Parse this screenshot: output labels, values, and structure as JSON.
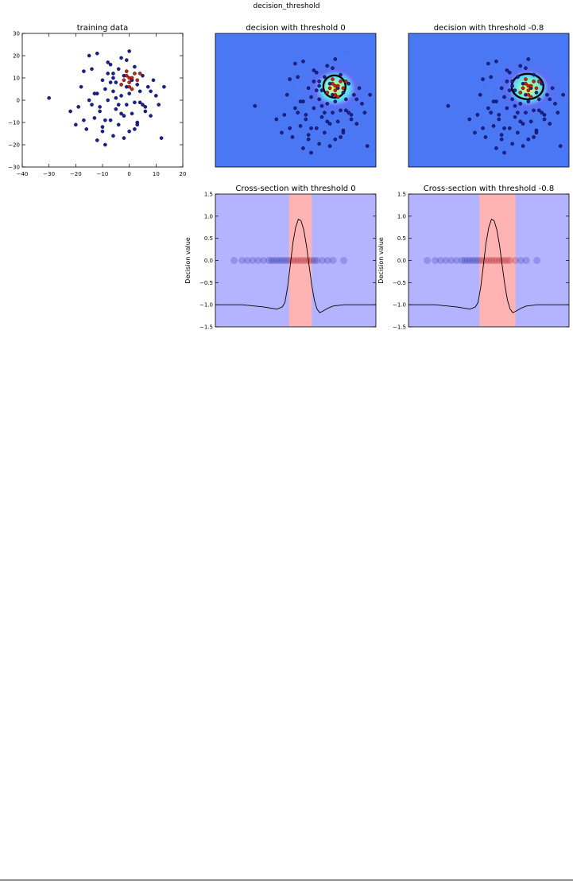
{
  "figure": {
    "suptitle": "decision_threshold"
  },
  "colors": {
    "point_blue": "#1a1f9a",
    "point_red": "#c8230c",
    "bg_blue": "#4a78f4",
    "band_red": "#ffb3b3",
    "region_blue": "#b3b3ff"
  },
  "chart_data": [
    {
      "type": "scatter",
      "title": "training data",
      "xlim": [
        -40,
        20
      ],
      "ylim": [
        -30,
        30
      ],
      "xticks": [
        "−40",
        "−30",
        "−20",
        "−10",
        "0",
        "10",
        "20"
      ],
      "yticks": [
        "30",
        "20",
        "10",
        "0",
        "−10",
        "−20",
        "−30"
      ],
      "series": [
        {
          "color": "#1a1f9a",
          "x": [
            -30,
            -22,
            -20,
            -18,
            -17,
            -15,
            -14,
            -13,
            -12,
            -12,
            -11,
            -10,
            -10,
            -9,
            -9,
            -8,
            -8,
            -7,
            -7,
            -6,
            -6,
            -5,
            -5,
            -4,
            -4,
            -3,
            -3,
            -2,
            -2,
            -1,
            -1,
            0,
            0,
            1,
            1,
            2,
            2,
            3,
            3,
            4,
            5,
            6,
            7,
            8,
            10,
            12,
            13,
            -16,
            -14,
            -11,
            -8,
            -6,
            -3,
            -1,
            2,
            4,
            6,
            -19,
            -13,
            -9,
            -4,
            0,
            3,
            8,
            -2,
            -6,
            -10,
            11,
            -17,
            -15,
            -12,
            -7,
            -5,
            5,
            9
          ],
          "y": [
            1,
            -5,
            -11,
            6,
            13,
            20,
            14,
            -8,
            3,
            21,
            -3,
            9,
            -14,
            5,
            -20,
            12,
            0,
            -9,
            16,
            4,
            -16,
            8,
            -4,
            14,
            -11,
            2,
            19,
            -7,
            11,
            -2,
            6,
            -14,
            3,
            9,
            -6,
            15,
            -1,
            7,
            -10,
            4,
            11,
            -3,
            6,
            -7,
            2,
            -17,
            6,
            -13,
            -2,
            -5,
            17,
            10,
            -6,
            18,
            -13,
            -1,
            -5,
            -3,
            3,
            -9,
            -2,
            22,
            -11,
            4,
            -17,
            12,
            -12,
            -2,
            -9,
            0,
            -18,
            8,
            1,
            -2,
            9
          ]
        },
        {
          "color": "#c8230c",
          "x": [
            -2,
            -1,
            0,
            1,
            2,
            -3,
            0,
            3,
            -1,
            1,
            4,
            0
          ],
          "y": [
            9,
            11,
            8,
            10,
            12,
            7,
            6,
            9,
            13,
            5,
            12,
            10
          ]
        }
      ]
    },
    {
      "type": "heatmap",
      "title": "decision with threshold 0",
      "threshold": 0
    },
    {
      "type": "heatmap",
      "title": "decision with threshold -0.8",
      "threshold": -0.8
    },
    {
      "type": "line",
      "title": "Cross-section with threshold 0",
      "ylabel": "Decision value",
      "ylim": [
        -1.5,
        1.5
      ],
      "yticks": [
        "1.5",
        "1.0",
        "0.5",
        "0.0",
        "−0.5",
        "−1.0",
        "−1.5"
      ],
      "xlim": [
        -30,
        30
      ],
      "positive_band": [
        -2.5,
        6
      ],
      "curve_x": [
        -30,
        -20,
        -12,
        -9,
        -7,
        -5,
        -4,
        -3,
        -2,
        -1,
        0,
        1,
        2,
        3,
        4,
        5,
        6,
        7,
        8,
        9,
        10,
        12,
        14,
        18,
        22,
        26,
        30
      ],
      "curve_y": [
        -1.0,
        -1.0,
        -1.05,
        -1.08,
        -1.1,
        -1.05,
        -0.95,
        -0.6,
        -0.1,
        0.4,
        0.75,
        0.93,
        0.9,
        0.7,
        0.35,
        -0.1,
        -0.55,
        -0.9,
        -1.1,
        -1.18,
        -1.15,
        -1.08,
        -1.03,
        -1.0,
        -1.0,
        -1.0,
        -1.0
      ],
      "points_x": [
        -23,
        -20,
        -18,
        -16,
        -14,
        -12,
        -10,
        -9,
        -8,
        -7,
        -6,
        -5,
        -4,
        -3,
        -2,
        -1,
        0,
        1,
        2,
        3,
        4,
        5,
        6,
        7,
        8,
        10,
        12,
        14,
        18
      ]
    },
    {
      "type": "line",
      "title": "Cross-section with threshold -0.8",
      "ylabel": "Decision value",
      "ylim": [
        -1.5,
        1.5
      ],
      "yticks": [
        "1.5",
        "1.0",
        "0.5",
        "0.0",
        "−0.5",
        "−1.0",
        "−1.5"
      ],
      "xlim": [
        -30,
        30
      ],
      "positive_band": [
        -3.5,
        10
      ],
      "curve_x": [
        -30,
        -20,
        -12,
        -9,
        -7,
        -5,
        -4,
        -3,
        -2,
        -1,
        0,
        1,
        2,
        3,
        4,
        5,
        6,
        7,
        8,
        9,
        10,
        12,
        14,
        18,
        22,
        26,
        30
      ],
      "curve_y": [
        -1.0,
        -1.0,
        -1.05,
        -1.08,
        -1.1,
        -1.05,
        -0.95,
        -0.6,
        -0.1,
        0.4,
        0.75,
        0.93,
        0.9,
        0.7,
        0.35,
        -0.1,
        -0.55,
        -0.9,
        -1.1,
        -1.18,
        -1.15,
        -1.08,
        -1.03,
        -1.0,
        -1.0,
        -1.0,
        -1.0
      ],
      "points_x": [
        -23,
        -20,
        -18,
        -16,
        -14,
        -12,
        -10,
        -9,
        -8,
        -7,
        -6,
        -5,
        -4,
        -3,
        -2,
        -1,
        0,
        1,
        2,
        3,
        4,
        5,
        6,
        7,
        8,
        10,
        12,
        14,
        18
      ]
    }
  ]
}
